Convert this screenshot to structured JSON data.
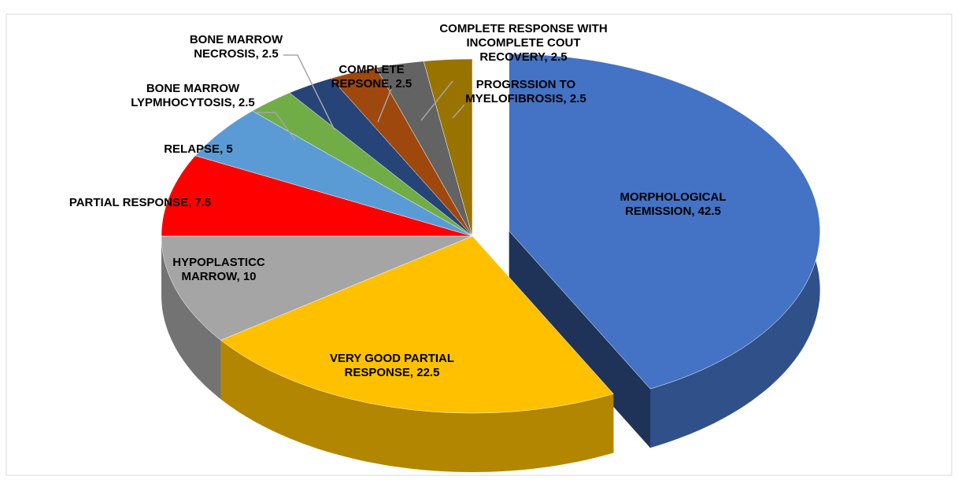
{
  "chart_data": {
    "type": "pie",
    "categories": [
      "MORPHOLOGICAL REMISSION",
      "VERY GOOD PARTIAL RESPONSE",
      "HYPOPLASTICC MARROW",
      "PARTIAL RESPONSE",
      "RELAPSE",
      "BONE MARROW LYPMHOCYTOSIS",
      "BONE MARROW NECROSIS",
      "COMPLETE REPSONE",
      "COMPLETE RESPONSE WITH INCOMPLETE COUT RECOVERY",
      "PROGRSSION TO MYELOFIBROSIS"
    ],
    "values": [
      42.5,
      22.5,
      10,
      7.5,
      5,
      2.5,
      2.5,
      2.5,
      2.5,
      2.5
    ],
    "colors": [
      "#4472c4",
      "#ffc000",
      "#a5a5a5",
      "#ff0000",
      "#5b9bd5",
      "#70ad47",
      "#264478",
      "#9e480e",
      "#636363",
      "#997300"
    ]
  }
}
